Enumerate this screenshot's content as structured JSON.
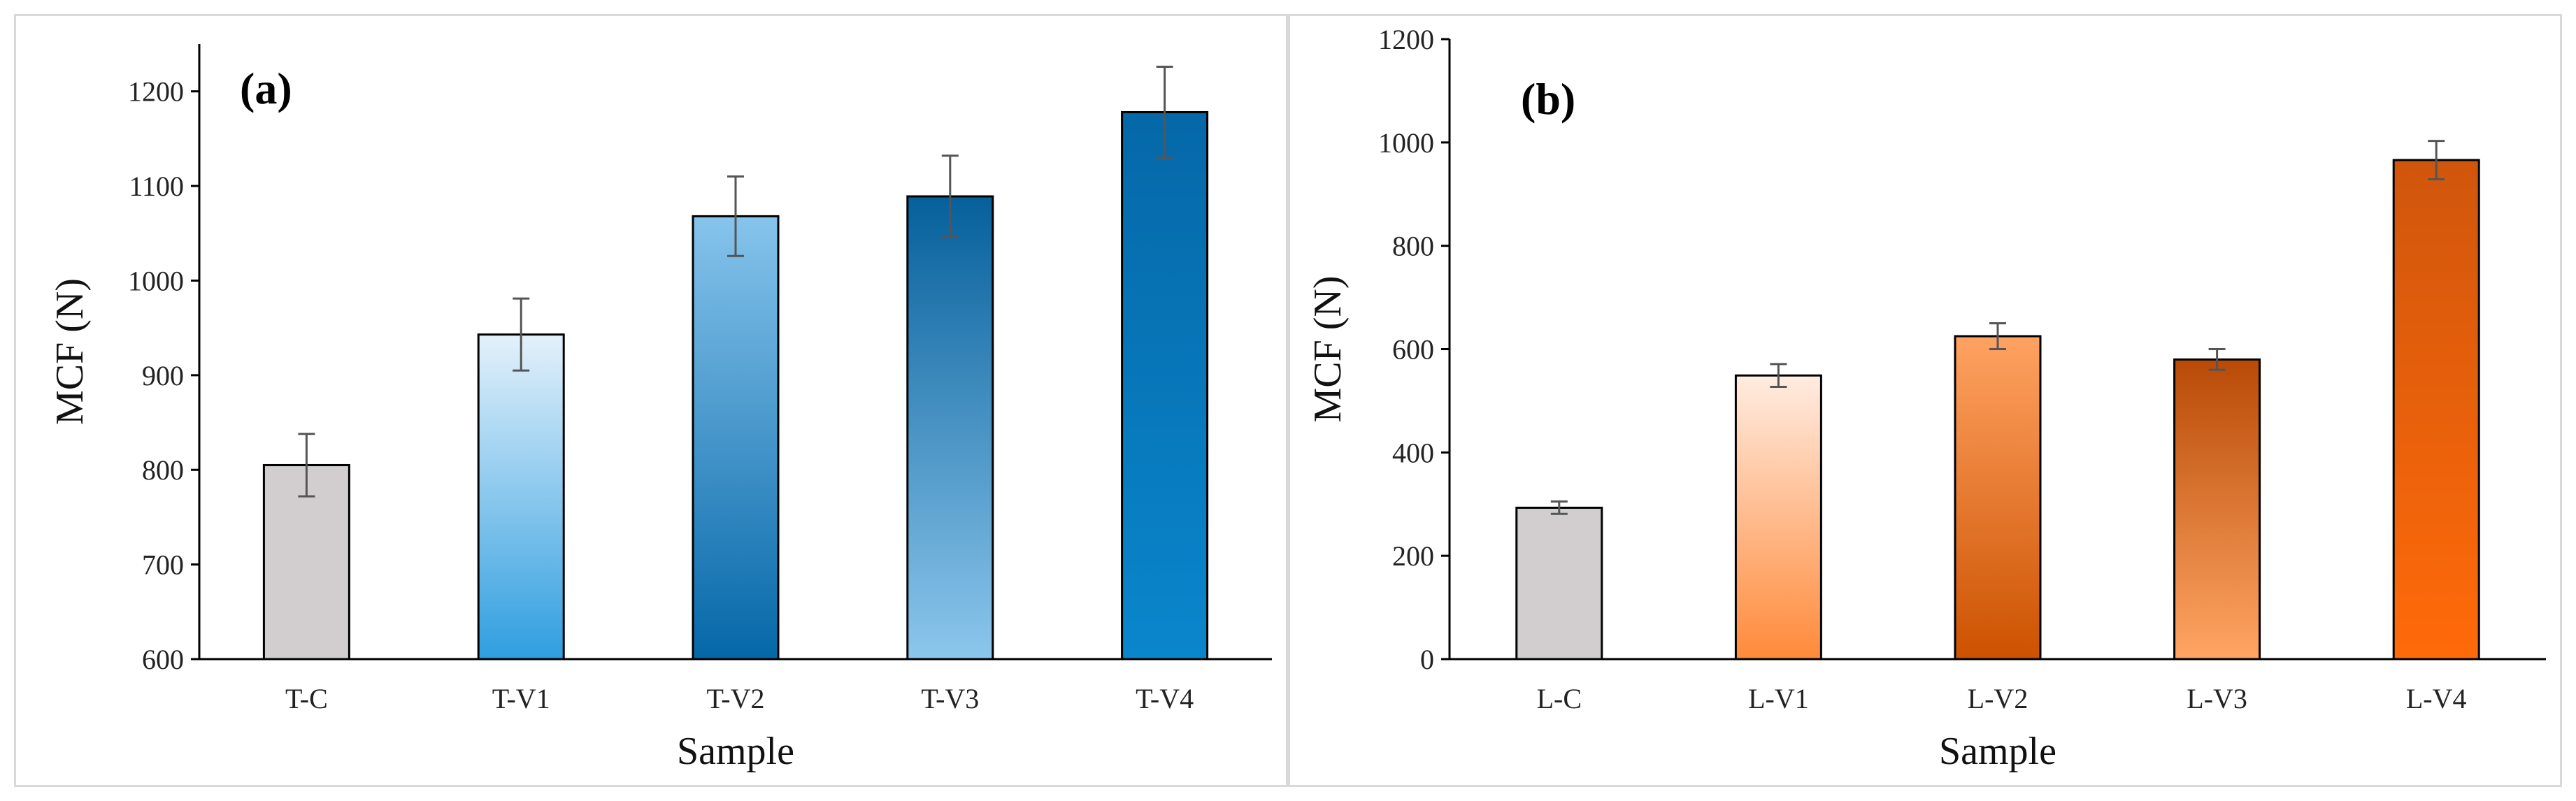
{
  "chart_data": [
    {
      "type": "bar",
      "panel_label": "(a)",
      "categories": [
        "T-C",
        "T-V1",
        "T-V2",
        "T-V3",
        "T-V4"
      ],
      "values": [
        805,
        943,
        1068,
        1089,
        1178
      ],
      "errors": [
        33,
        38,
        42,
        43,
        48
      ],
      "xlabel": "Sample",
      "ylabel": "MCF (N)",
      "ylim": [
        600,
        1250
      ],
      "yticks": [
        600,
        700,
        800,
        900,
        1000,
        1100,
        1200
      ],
      "grid": false,
      "colors": [
        [
          "#d2ced0",
          "#d2ced0"
        ],
        [
          "#e4f1fb",
          "#2f9ee0"
        ],
        [
          "#86c4ec",
          "#0567a8"
        ],
        [
          "#06609b",
          "#8cc6ec"
        ],
        [
          "#0568a8",
          "#0a86cc"
        ]
      ]
    },
    {
      "type": "bar",
      "panel_label": "(b)",
      "categories": [
        "L-C",
        "L-V1",
        "L-V2",
        "L-V3",
        "L-V4"
      ],
      "values": [
        293,
        549,
        625,
        580,
        966
      ],
      "errors": [
        12,
        22,
        25,
        20,
        37
      ],
      "xlabel": "Sample",
      "ylabel": "MCF (N)",
      "ylim": [
        0,
        1200
      ],
      "yticks": [
        0,
        200,
        400,
        600,
        800,
        1000,
        1200
      ],
      "grid": false,
      "colors": [
        [
          "#d2ced0",
          "#d2ced0"
        ],
        [
          "#ffece1",
          "#ff8a3a"
        ],
        [
          "#ffa262",
          "#cc5200"
        ],
        [
          "#b84a06",
          "#ffa564"
        ],
        [
          "#d0560c",
          "#ff6a0a"
        ]
      ]
    }
  ]
}
